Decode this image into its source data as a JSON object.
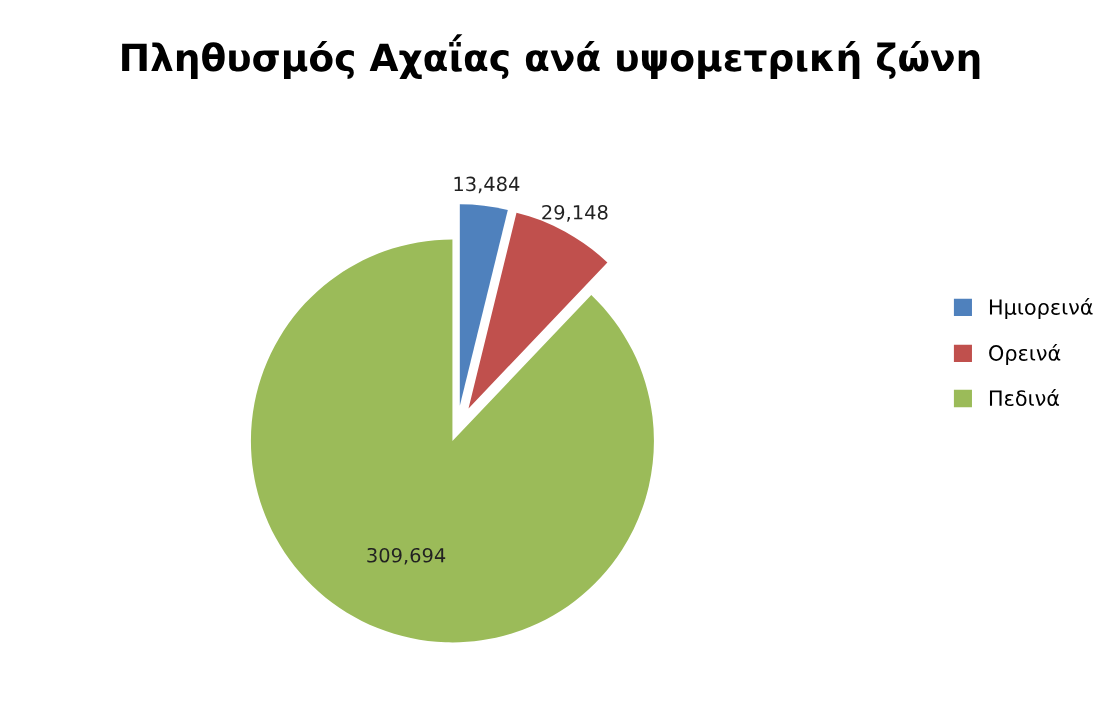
{
  "chart_data": {
    "type": "pie",
    "title": "Πληθυσμός Αχαΐας ανά υψομετρική ζώνη",
    "categories": [
      "Ημιορεινά",
      "Ορεινά",
      "Πεδινά"
    ],
    "values": [
      13484,
      29148,
      309694
    ],
    "value_labels": [
      "13,484",
      "29,148",
      "309,694"
    ],
    "colors": [
      "#4f81bd",
      "#c0504d",
      "#9bbb59"
    ],
    "legend": "right"
  }
}
